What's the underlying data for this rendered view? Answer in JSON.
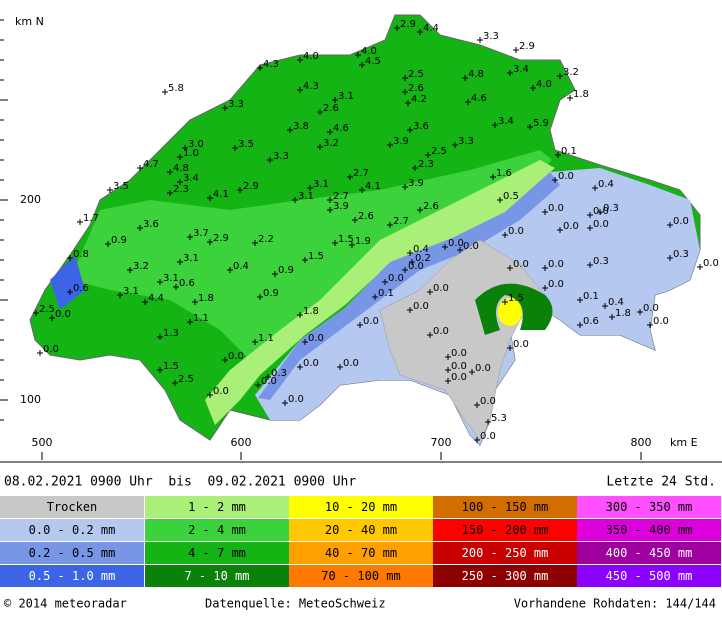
{
  "map": {
    "axis_labels": {
      "north": "km N",
      "east": "km E"
    },
    "y_ticks": [
      "200",
      "100"
    ],
    "x_ticks": [
      "500",
      "600",
      "700",
      "800"
    ],
    "stations": [
      "2.9",
      "4.4",
      "3.3",
      "2.9",
      "4.0",
      "4.0",
      "4.5",
      "4.3",
      "2.5",
      "4.8",
      "3.4",
      "3.2",
      "4.0",
      "1.8",
      "5.8",
      "4.3",
      "2.6",
      "3.1",
      "4.2",
      "4.6",
      "3.3",
      "2.6",
      "3.4",
      "5.9",
      "3.8",
      "4.6",
      "3.6",
      "3.0",
      "3.5",
      "3.2",
      "3.9",
      "3.3",
      "1.0",
      "2.5",
      "4.7",
      "3.3",
      "2.3",
      "4.8",
      "0.1",
      "3.4",
      "2.7",
      "3.1",
      "3.9",
      "1.6",
      "0.0",
      "3.5",
      "2.3",
      "2.9",
      "4.1",
      "0.4",
      "4.1",
      "3.1",
      "2.7",
      "0.5",
      "3.9",
      "0.0",
      "0.0",
      "2.6",
      "0.3",
      "1.7",
      "3.6",
      "2.6",
      "2.7",
      "0.0",
      "0.0",
      "0.0",
      "3.7",
      "2.9",
      "2.2",
      "1.5",
      "1.9",
      "0.9",
      "0.0",
      "0.0",
      "0.0",
      "0.4",
      "0.2",
      "0.8",
      "1.5",
      "0.3",
      "3.2",
      "3.1",
      "0.4",
      "0.9",
      "0.0",
      "0.0",
      "0.0",
      "0.3",
      "0.0",
      "0.0",
      "3.1",
      "3.1",
      "0.6",
      "0.6",
      "0.0",
      "0.0",
      "0.1",
      "4.4",
      "1.8",
      "0.9",
      "1.5",
      "0.1",
      "0.4",
      "1.8",
      "2.5",
      "0.0",
      "1.8",
      "0.0",
      "0.0",
      "0.0",
      "1.1",
      "0.6",
      "0.0",
      "0.0",
      "1.3",
      "1.1",
      "0.0",
      "0.0",
      "0.0",
      "0.0",
      "0.0",
      "1.5",
      "0.0",
      "0.0",
      "0.0",
      "0.0",
      "2.5",
      "0.3",
      "0.0",
      "0.0",
      "0.0",
      "0.0",
      "0.0",
      "5.3",
      "0.0"
    ]
  },
  "legend": {
    "period": "08.02.2021 0900 Uhr  bis  09.02.2021 0900 Uhr",
    "span": "Letzte 24 Std.",
    "classes": [
      [
        "Trocken",
        "0.0 - 0.2 mm",
        "0.2 - 0.5 mm",
        "0.5 - 1.0 mm"
      ],
      [
        "1 - 2 mm",
        "2 - 4 mm",
        "4 - 7 mm",
        "7 - 10 mm"
      ],
      [
        "10 - 20 mm",
        "20 - 40 mm",
        "40 - 70 mm",
        "70 - 100 mm"
      ],
      [
        "100 - 150 mm",
        "150 - 200 mm",
        "200 - 250 mm",
        "250 - 300 mm"
      ],
      [
        "300 - 350 mm",
        "350 - 400 mm",
        "400 - 450 mm",
        "450 - 500 mm"
      ]
    ]
  },
  "footer": {
    "copyright": "© 2014 meteoradar",
    "source": "Datenquelle: MeteoSchweiz",
    "data": "Vorhandene Rohdaten: 144/144"
  }
}
